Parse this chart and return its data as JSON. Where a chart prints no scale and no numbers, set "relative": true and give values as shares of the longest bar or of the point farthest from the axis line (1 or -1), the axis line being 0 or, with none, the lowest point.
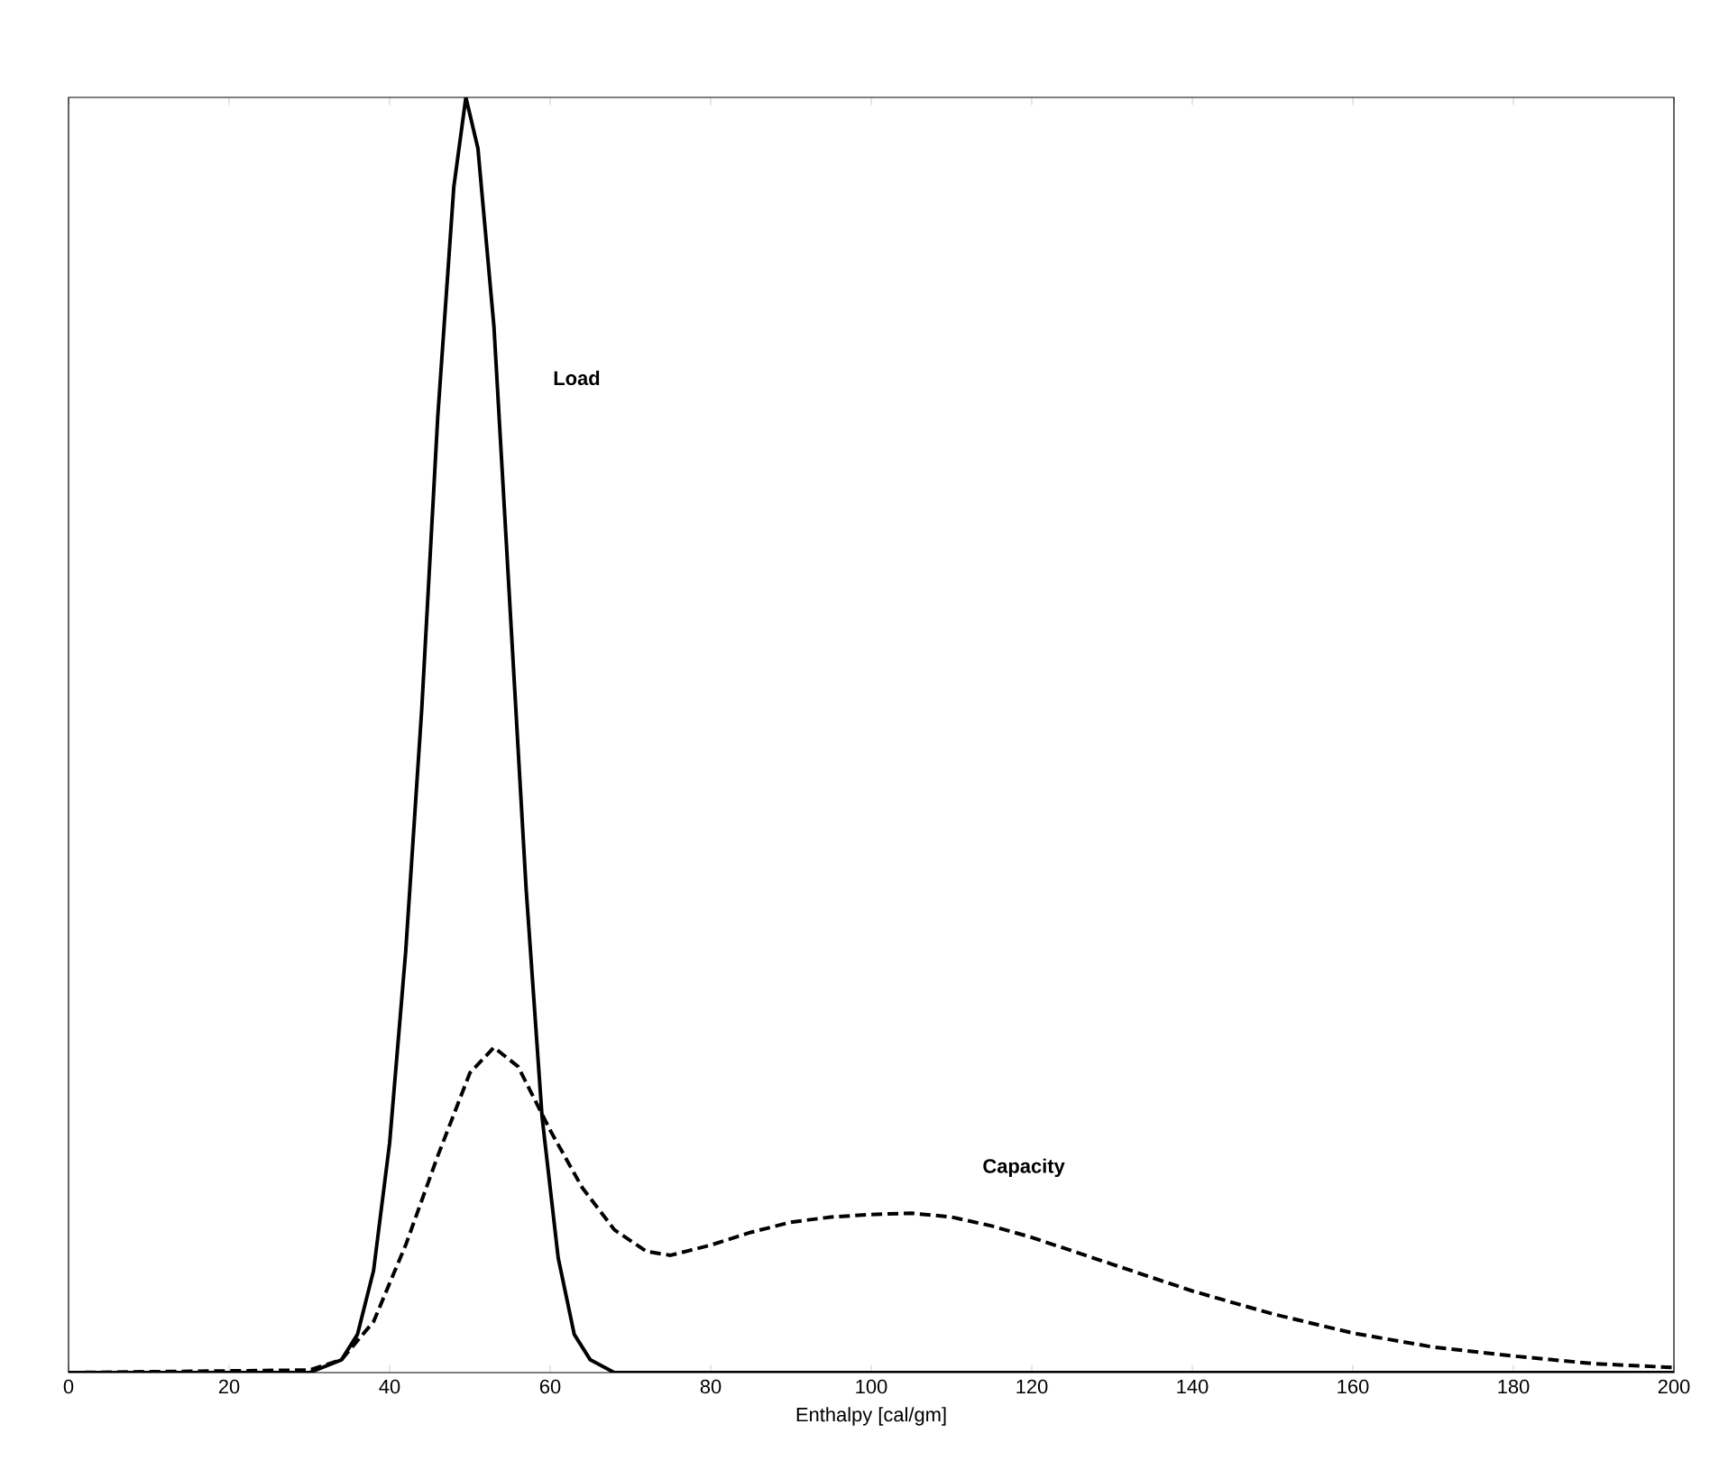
{
  "chart_data": {
    "type": "line",
    "xlabel": "Enthalpy [cal/gm]",
    "relative": true,
    "xlim": [
      0,
      200
    ],
    "xticks": [
      0,
      20,
      40,
      60,
      80,
      100,
      120,
      140,
      160,
      180,
      200
    ],
    "series": [
      {
        "name": "Load",
        "color": "#000000",
        "line_style": "solid",
        "x": [
          0,
          30,
          34,
          36,
          38,
          40,
          42,
          44,
          46,
          48,
          49.5,
          51,
          53,
          55,
          57,
          59,
          61,
          63,
          65,
          68,
          200
        ],
        "values": [
          0,
          0,
          0.01,
          0.03,
          0.08,
          0.18,
          0.33,
          0.52,
          0.75,
          0.93,
          1.0,
          0.96,
          0.82,
          0.6,
          0.38,
          0.2,
          0.09,
          0.03,
          0.01,
          0,
          0
        ]
      },
      {
        "name": "Capacity",
        "color": "#000000",
        "line_style": "dashed",
        "x": [
          0,
          30,
          34,
          38,
          42,
          46,
          50,
          53,
          56,
          60,
          64,
          68,
          72,
          75,
          80,
          85,
          90,
          95,
          100,
          105,
          110,
          115,
          120,
          130,
          140,
          150,
          160,
          170,
          180,
          190,
          200
        ],
        "values": [
          0,
          0.002,
          0.01,
          0.04,
          0.1,
          0.17,
          0.235,
          0.255,
          0.24,
          0.19,
          0.145,
          0.112,
          0.095,
          0.092,
          0.1,
          0.11,
          0.118,
          0.122,
          0.124,
          0.125,
          0.122,
          0.115,
          0.106,
          0.085,
          0.064,
          0.046,
          0.031,
          0.02,
          0.013,
          0.007,
          0.004
        ]
      }
    ]
  }
}
